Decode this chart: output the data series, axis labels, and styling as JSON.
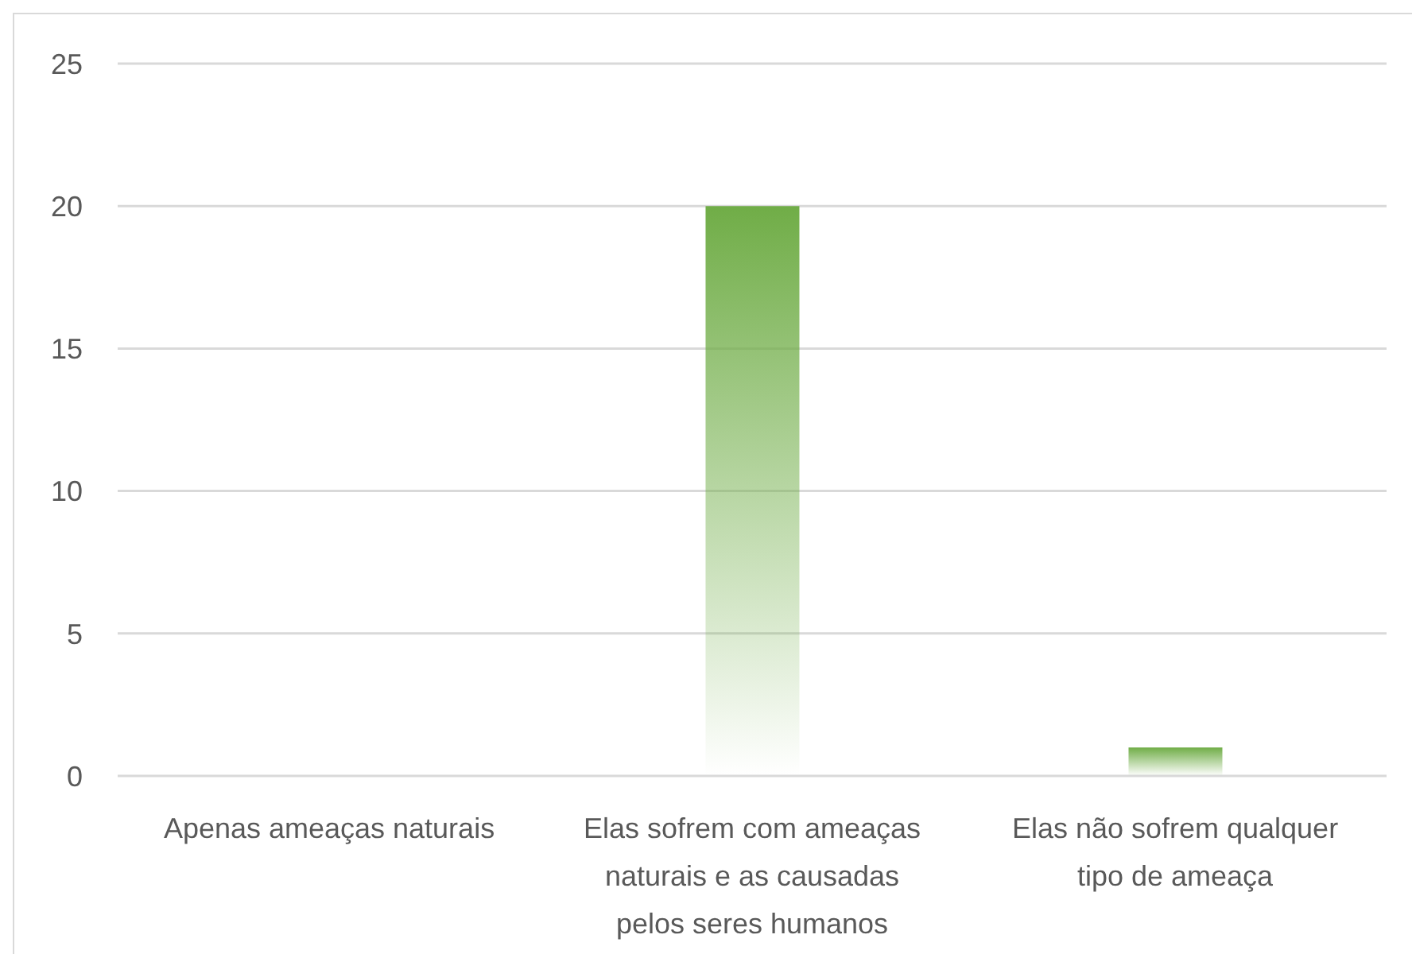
{
  "chart_data": {
    "type": "bar",
    "categories": [
      "Apenas ameaças naturais",
      "Elas sofrem com ameaças naturais e as causadas pelos seres humanos",
      "Elas não sofrem qualquer tipo de ameaça"
    ],
    "values": [
      0,
      20,
      1
    ],
    "color": "#70ad47",
    "ylim": [
      0,
      25
    ],
    "yticks": [
      0,
      5,
      10,
      15,
      20,
      25
    ],
    "grid": "y"
  }
}
